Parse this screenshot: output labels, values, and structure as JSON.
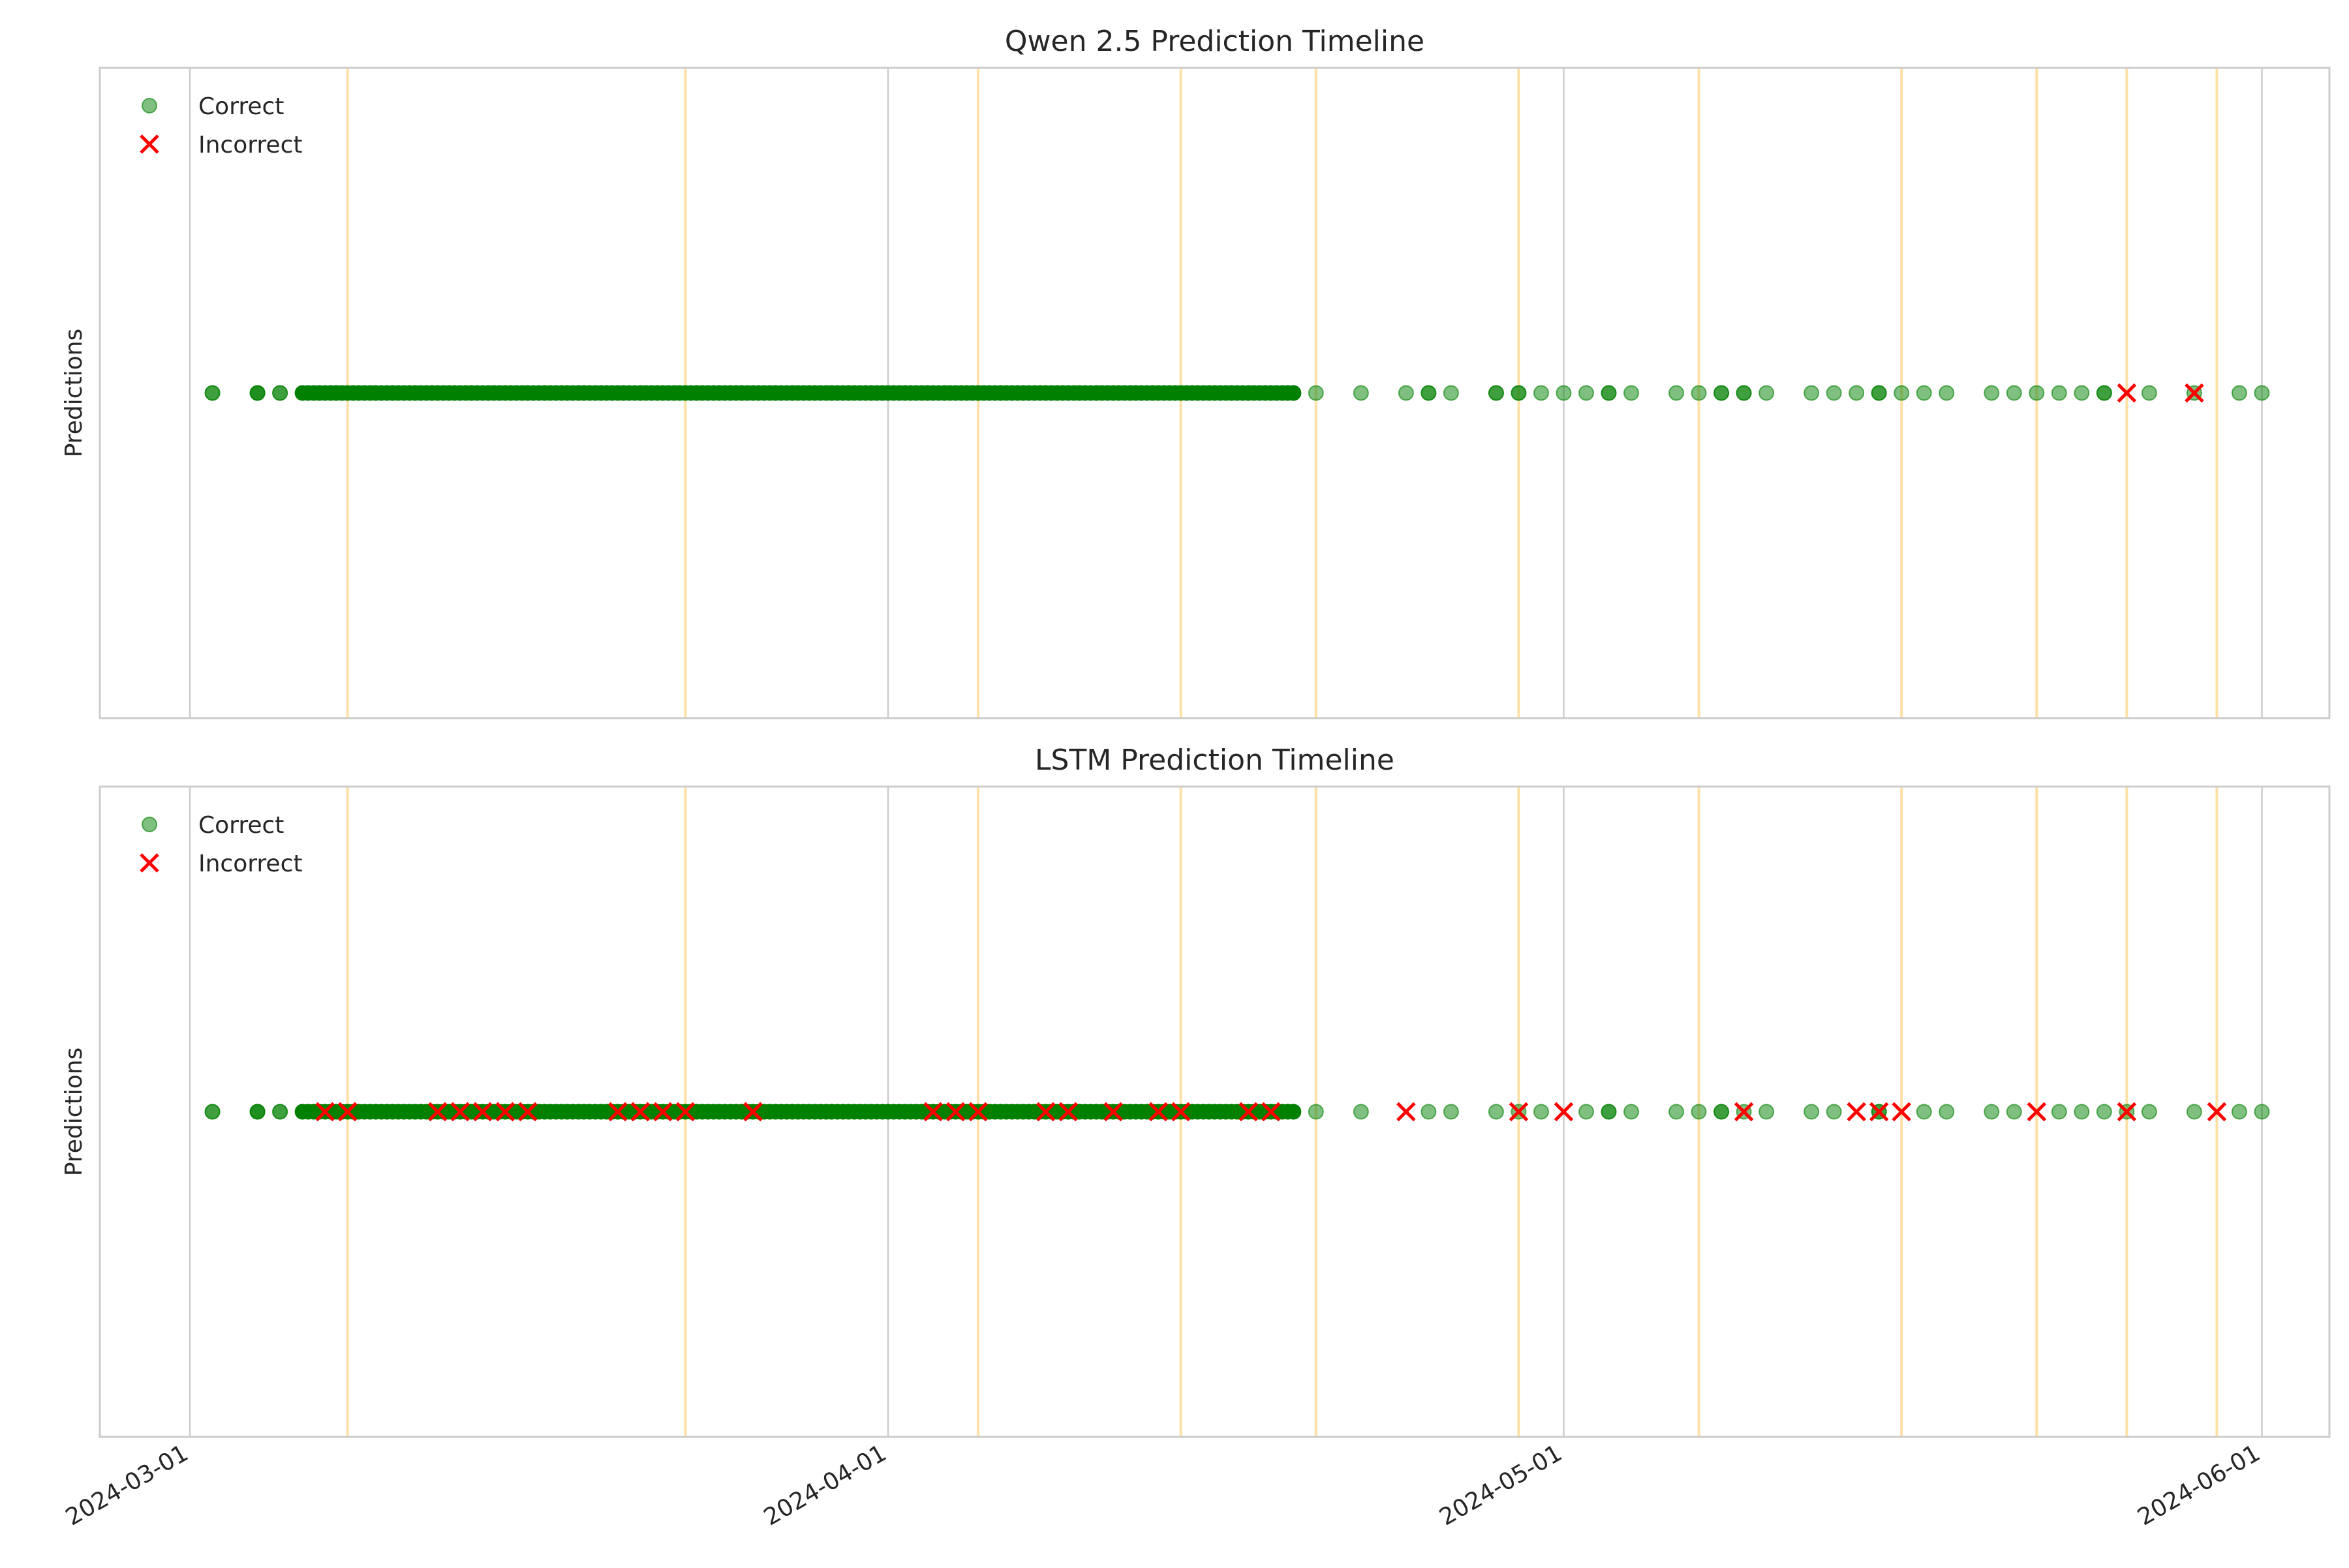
{
  "chart_data": [
    {
      "type": "scatter",
      "title": "Qwen 2.5 Prediction Timeline",
      "ylabel": "Predictions",
      "xlabel": "",
      "xlim": [
        "2024-02-26",
        "2024-06-04"
      ],
      "x_ticks": [
        "2024-03-01",
        "2024-04-01",
        "2024-05-01",
        "2024-06-01"
      ],
      "grid": true,
      "legend": "top-left",
      "marker_y": 0,
      "event_lines": [
        "2024-03-08",
        "2024-03-23",
        "2024-04-05",
        "2024-04-14",
        "2024-04-20",
        "2024-04-29",
        "2024-05-07",
        "2024-05-16",
        "2024-05-22",
        "2024-05-26",
        "2024-05-30"
      ],
      "series": [
        {
          "name": "Correct",
          "marker": "circle",
          "color": "#008000",
          "dense_range": [
            "2024-03-06",
            "2024-04-19"
          ],
          "x": [
            "2024-03-02",
            "2024-03-02",
            "2024-03-04",
            "2024-03-04",
            "2024-03-04",
            "2024-03-05",
            "2024-03-05",
            "2024-04-19",
            "2024-04-20",
            "2024-04-22",
            "2024-04-24",
            "2024-04-25",
            "2024-04-25",
            "2024-04-26",
            "2024-04-28",
            "2024-04-28",
            "2024-04-29",
            "2024-04-29",
            "2024-04-30",
            "2024-05-01",
            "2024-05-02",
            "2024-05-03",
            "2024-05-03",
            "2024-05-04",
            "2024-05-06",
            "2024-05-07",
            "2024-05-08",
            "2024-05-08",
            "2024-05-09",
            "2024-05-09",
            "2024-05-10",
            "2024-05-12",
            "2024-05-13",
            "2024-05-14",
            "2024-05-15",
            "2024-05-15",
            "2024-05-16",
            "2024-05-17",
            "2024-05-18",
            "2024-05-20",
            "2024-05-21",
            "2024-05-22",
            "2024-05-23",
            "2024-05-24",
            "2024-05-25",
            "2024-05-25",
            "2024-05-27",
            "2024-05-29",
            "2024-05-31",
            "2024-06-01"
          ]
        },
        {
          "name": "Incorrect",
          "marker": "x",
          "color": "#ff0000",
          "x": [
            "2024-05-26",
            "2024-05-29"
          ]
        }
      ]
    },
    {
      "type": "scatter",
      "title": "LSTM Prediction Timeline",
      "ylabel": "Predictions",
      "xlabel": "",
      "xlim": [
        "2024-02-26",
        "2024-06-04"
      ],
      "x_ticks": [
        "2024-03-01",
        "2024-04-01",
        "2024-05-01",
        "2024-06-01"
      ],
      "grid": true,
      "legend": "top-left",
      "marker_y": 0,
      "event_lines": [
        "2024-03-08",
        "2024-03-23",
        "2024-04-05",
        "2024-04-14",
        "2024-04-20",
        "2024-04-29",
        "2024-05-07",
        "2024-05-16",
        "2024-05-22",
        "2024-05-26",
        "2024-05-30"
      ],
      "series": [
        {
          "name": "Correct",
          "marker": "circle",
          "color": "#008000",
          "dense_range": [
            "2024-03-06",
            "2024-04-19"
          ],
          "x": [
            "2024-03-02",
            "2024-03-02",
            "2024-03-04",
            "2024-03-04",
            "2024-03-04",
            "2024-03-05",
            "2024-03-05",
            "2024-04-19",
            "2024-04-20",
            "2024-04-22",
            "2024-04-25",
            "2024-04-26",
            "2024-04-28",
            "2024-04-29",
            "2024-04-30",
            "2024-05-02",
            "2024-05-03",
            "2024-05-03",
            "2024-05-04",
            "2024-05-06",
            "2024-05-07",
            "2024-05-08",
            "2024-05-08",
            "2024-05-09",
            "2024-05-10",
            "2024-05-12",
            "2024-05-13",
            "2024-05-15",
            "2024-05-15",
            "2024-05-17",
            "2024-05-18",
            "2024-05-20",
            "2024-05-21",
            "2024-05-23",
            "2024-05-24",
            "2024-05-25",
            "2024-05-26",
            "2024-05-27",
            "2024-05-29",
            "2024-05-31",
            "2024-06-01"
          ]
        },
        {
          "name": "Incorrect",
          "marker": "x",
          "color": "#ff0000",
          "x": [
            "2024-03-07",
            "2024-03-08",
            "2024-03-08",
            "2024-03-12",
            "2024-03-13",
            "2024-03-14",
            "2024-03-15",
            "2024-03-15",
            "2024-03-16",
            "2024-03-20",
            "2024-03-21",
            "2024-03-21",
            "2024-03-22",
            "2024-03-23",
            "2024-03-26",
            "2024-03-26",
            "2024-04-03",
            "2024-04-04",
            "2024-04-05",
            "2024-04-08",
            "2024-04-09",
            "2024-04-11",
            "2024-04-13",
            "2024-04-14",
            "2024-04-17",
            "2024-04-18",
            "2024-04-24",
            "2024-04-29",
            "2024-05-01",
            "2024-05-09",
            "2024-05-14",
            "2024-05-15",
            "2024-05-16",
            "2024-05-22",
            "2024-05-26",
            "2024-05-30"
          ]
        }
      ]
    }
  ]
}
